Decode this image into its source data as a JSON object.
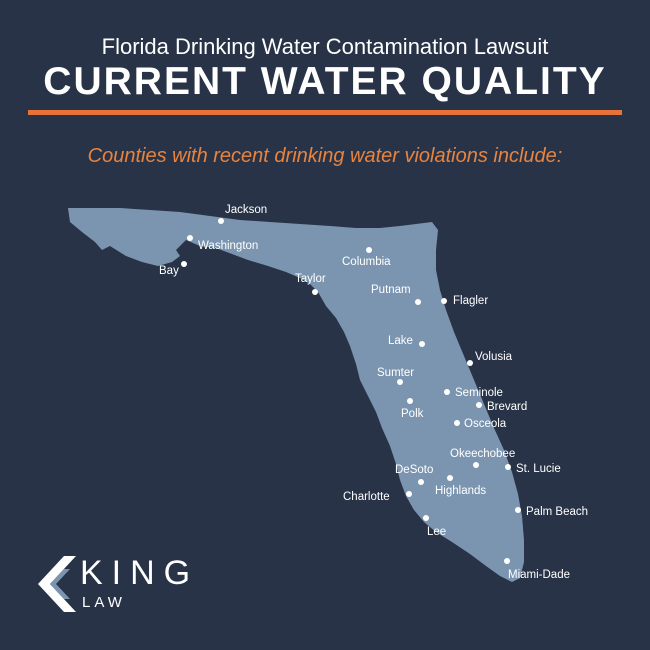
{
  "header": {
    "subtitle": "Florida Drinking Water Contamination Lawsuit",
    "title": "CURRENT WATER QUALITY",
    "tagline": "Counties with recent drinking water violations include:"
  },
  "colors": {
    "background": "#283347",
    "map_fill": "#7b95b0",
    "accent": "#e8733a",
    "text": "#ffffff"
  },
  "counties": [
    {
      "name": "Jackson"
    },
    {
      "name": "Washington"
    },
    {
      "name": "Bay"
    },
    {
      "name": "Columbia"
    },
    {
      "name": "Taylor"
    },
    {
      "name": "Putnam"
    },
    {
      "name": "Flagler"
    },
    {
      "name": "Lake"
    },
    {
      "name": "Volusia"
    },
    {
      "name": "Sumter"
    },
    {
      "name": "Seminole"
    },
    {
      "name": "Brevard"
    },
    {
      "name": "Polk"
    },
    {
      "name": "Osceola"
    },
    {
      "name": "Okeechobee"
    },
    {
      "name": "DeSoto"
    },
    {
      "name": "St. Lucie"
    },
    {
      "name": "Highlands"
    },
    {
      "name": "Charlotte"
    },
    {
      "name": "Palm Beach"
    },
    {
      "name": "Lee"
    },
    {
      "name": "Miami-Dade"
    }
  ],
  "logo": {
    "word": "KING",
    "sub": "LAW"
  }
}
